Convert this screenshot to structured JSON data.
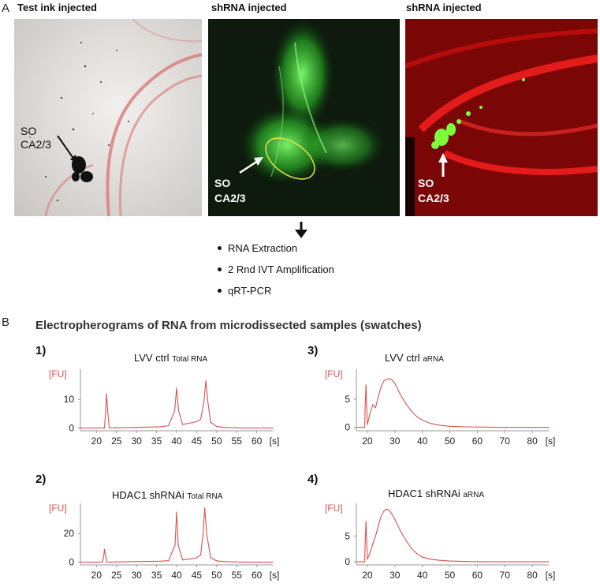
{
  "panel_a": {
    "letter": "A",
    "images": [
      {
        "title": "Test ink injected",
        "label_line1": "SO",
        "label_line2": "CA2/3"
      },
      {
        "title": "shRNA injected",
        "label_line1": "SO",
        "label_line2": "CA2/3"
      },
      {
        "title": "shRNA injected",
        "label_line1": "SO",
        "label_line2": "CA2/3"
      }
    ],
    "steps": [
      "RNA Extraction",
      "2 Rnd IVT Amplification",
      "qRT-PCR"
    ]
  },
  "panel_b": {
    "letter": "B",
    "heading": "Electropherograms of RNA from microdissected samples (swatches)"
  },
  "colors": {
    "trace": "#d9534f",
    "axis_label": "#d9534f",
    "tick_text": "#222222"
  },
  "chart_data": [
    {
      "id": "1)",
      "type": "line",
      "title_main": "LVV ctrl",
      "title_sub": "Total RNA",
      "ylabel": "[FU]",
      "xlabel": "[s]",
      "xlim": [
        16,
        64
      ],
      "ylim": [
        -1,
        20
      ],
      "xticks": [
        20,
        25,
        30,
        35,
        40,
        45,
        50,
        55,
        60
      ],
      "yticks": [
        0,
        10
      ],
      "x": [
        16,
        22,
        22.3,
        22.5,
        22.8,
        23.2,
        30,
        36,
        38,
        39.5,
        40,
        40.5,
        41.5,
        43,
        45,
        46,
        46.8,
        47.3,
        47.8,
        48.5,
        50,
        52,
        56,
        64
      ],
      "y": [
        0,
        0,
        6,
        12,
        6,
        0,
        0.2,
        0.4,
        0.8,
        6,
        14,
        6,
        1.2,
        1.6,
        2.2,
        3,
        9,
        16.5,
        9,
        2,
        0.5,
        0.2,
        0,
        0
      ]
    },
    {
      "id": "3)",
      "type": "line",
      "title_main": "LVV ctrl",
      "title_sub": "aRNA",
      "ylabel": "[FU]",
      "xlabel": "[s]",
      "xlim": [
        16,
        86
      ],
      "ylim": [
        -0.6,
        10
      ],
      "xticks": [
        20,
        30,
        40,
        50,
        60,
        70,
        80
      ],
      "yticks": [
        0,
        5
      ],
      "x": [
        16,
        19,
        19.2,
        19.5,
        20,
        21,
        22,
        23,
        24,
        25,
        26,
        27,
        28,
        29,
        30,
        32,
        34,
        36,
        38,
        40,
        43,
        46,
        50,
        56,
        62,
        70,
        86
      ],
      "y": [
        0,
        0,
        4,
        7.5,
        0.5,
        2.5,
        4,
        3.5,
        5.5,
        7.2,
        8.2,
        8.5,
        8.6,
        8.4,
        7.8,
        5.8,
        4.2,
        2.9,
        1.9,
        1.3,
        0.7,
        0.4,
        0.2,
        0.1,
        0.05,
        0,
        0
      ]
    },
    {
      "id": "2)",
      "type": "line",
      "title_main": "HDAC1 shRNAi",
      "title_sub": "Total RNA",
      "ylabel": "[FU]",
      "xlabel": "[s]",
      "xlim": [
        16,
        64
      ],
      "ylim": [
        -2,
        40
      ],
      "xticks": [
        20,
        25,
        30,
        35,
        40,
        45,
        50,
        55,
        60
      ],
      "yticks": [
        0,
        20
      ],
      "x": [
        16,
        21.5,
        21.8,
        22,
        22.3,
        22.6,
        30,
        36,
        38,
        39.6,
        40,
        40.4,
        41.5,
        43,
        45,
        46,
        46.6,
        47,
        47.5,
        48.5,
        50,
        52,
        56,
        64
      ],
      "y": [
        0,
        0,
        4,
        9,
        4,
        0,
        0.3,
        0.6,
        1,
        12,
        35,
        12,
        1.5,
        2,
        3,
        5,
        20,
        38,
        20,
        3,
        0.8,
        0.3,
        0,
        0
      ]
    },
    {
      "id": "4)",
      "type": "line",
      "title_main": "HDAC1 shRNAi",
      "title_sub": "aRNA",
      "ylabel": "[FU]",
      "xlabel": "[s]",
      "xlim": [
        16,
        86
      ],
      "ylim": [
        -0.6,
        11
      ],
      "xticks": [
        20,
        30,
        40,
        50,
        60,
        70,
        80
      ],
      "yticks": [
        0,
        5
      ],
      "x": [
        16,
        19,
        19.2,
        19.5,
        20,
        21,
        22,
        23,
        24,
        25,
        26,
        27,
        28,
        29,
        30,
        32,
        34,
        36,
        38,
        40,
        43,
        46,
        50,
        56,
        62,
        70,
        86
      ],
      "y": [
        0,
        0,
        4,
        7.8,
        0.5,
        1.8,
        3.5,
        5,
        7,
        8.8,
        9.8,
        10.2,
        9.9,
        9.2,
        8.2,
        6,
        4.2,
        2.6,
        1.6,
        0.9,
        0.5,
        0.3,
        0.15,
        0.05,
        0,
        0,
        0
      ]
    }
  ]
}
